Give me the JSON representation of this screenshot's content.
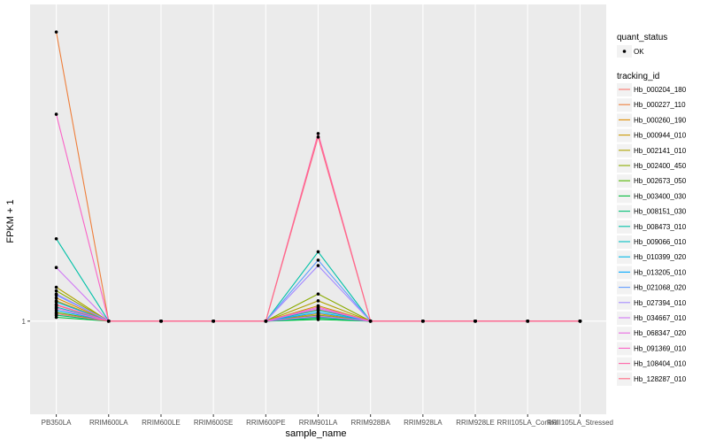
{
  "chart_data": {
    "type": "line",
    "xlabel": "sample_name",
    "ylabel": "FPKM + 1",
    "categories": [
      "PB350LA",
      "RRIM600LA",
      "RRIM600LE",
      "RRIM600SE",
      "RRIM600PE",
      "RRIM901LA",
      "RRIM928BA",
      "RRIM928LA",
      "RRIM928LE",
      "RRII105LA_Control",
      "RRII105LA_Stressed"
    ],
    "y_tick_labels": [
      "1"
    ],
    "y_ticks": [
      1
    ],
    "ylim": [
      0.3,
      60
    ],
    "grid": true,
    "legend": {
      "position": "right",
      "shape_title": "quant_status",
      "shape_items": [
        "OK"
      ],
      "color_title": "tracking_id"
    },
    "series": [
      {
        "name": "Hb_000204_180",
        "color": "#F8766D",
        "values": [
          1.23,
          1,
          1,
          1,
          1,
          1.05,
          1,
          1,
          1,
          1,
          1
        ]
      },
      {
        "name": "Hb_000227_110",
        "color": "#EE7E3A",
        "values": [
          42.0,
          1,
          1,
          1,
          1,
          1.16,
          1,
          1,
          1,
          1,
          1
        ]
      },
      {
        "name": "Hb_000260_190",
        "color": "#DE8C00",
        "values": [
          1.35,
          1,
          1,
          1,
          1,
          1.1,
          1,
          1,
          1,
          1,
          1
        ]
      },
      {
        "name": "Hb_000944_010",
        "color": "#C99800",
        "values": [
          1.3,
          1,
          1,
          1,
          1,
          1.22,
          1,
          1,
          1,
          1,
          1
        ]
      },
      {
        "name": "Hb_002141_010",
        "color": "#AEA200",
        "values": [
          1.55,
          1,
          1,
          1,
          1,
          1.3,
          1,
          1,
          1,
          1,
          1
        ]
      },
      {
        "name": "Hb_002400_450",
        "color": "#8AAB00",
        "values": [
          1.48,
          1,
          1,
          1,
          1,
          1.42,
          1,
          1,
          1,
          1,
          1
        ]
      },
      {
        "name": "Hb_002673_050",
        "color": "#53B400",
        "values": [
          1.12,
          1,
          1,
          1,
          1,
          1.08,
          1,
          1,
          1,
          1,
          1
        ]
      },
      {
        "name": "Hb_003400_030",
        "color": "#00BA38",
        "values": [
          1.05,
          1,
          1,
          1,
          1,
          1.02,
          1,
          1,
          1,
          1,
          1
        ]
      },
      {
        "name": "Hb_008151_030",
        "color": "#00BF74",
        "values": [
          1.08,
          1,
          1,
          1,
          1,
          1.04,
          1,
          1,
          1,
          1,
          1
        ]
      },
      {
        "name": "Hb_008473_010",
        "color": "#00C1A7",
        "values": [
          2.9,
          1,
          1,
          1,
          1,
          2.45,
          1,
          1,
          1,
          1,
          1
        ]
      },
      {
        "name": "Hb_009066_010",
        "color": "#00BFC4",
        "values": [
          1.2,
          1,
          1,
          1,
          1,
          1.15,
          1,
          1,
          1,
          1,
          1
        ]
      },
      {
        "name": "Hb_010399_020",
        "color": "#00B8E7",
        "values": [
          1.28,
          1,
          1,
          1,
          1,
          1.06,
          1,
          1,
          1,
          1,
          1
        ]
      },
      {
        "name": "Hb_013205_010",
        "color": "#00A9FF",
        "values": [
          1.15,
          1,
          1,
          1,
          1,
          1.12,
          1,
          1,
          1,
          1,
          1
        ]
      },
      {
        "name": "Hb_021068_020",
        "color": "#619CFF",
        "values": [
          1.4,
          1,
          1,
          1,
          1,
          2.2,
          1,
          1,
          1,
          1,
          1
        ]
      },
      {
        "name": "Hb_027394_010",
        "color": "#A58AFF",
        "values": [
          1.42,
          1,
          1,
          1,
          1,
          2.05,
          1,
          1,
          1,
          1,
          1
        ]
      },
      {
        "name": "Hb_034667_010",
        "color": "#D078F5",
        "values": [
          2.0,
          1,
          1,
          1,
          1,
          1.18,
          1,
          1,
          1,
          1,
          1
        ]
      },
      {
        "name": "Hb_068347_020",
        "color": "#EA6AE2",
        "values": [
          1.18,
          1,
          1,
          1,
          1,
          1.07,
          1,
          1,
          1,
          1,
          1
        ]
      },
      {
        "name": "Hb_091369_010",
        "color": "#FA62C6",
        "values": [
          14.5,
          1,
          1,
          1,
          1,
          1.2,
          1,
          1,
          1,
          1,
          1
        ]
      },
      {
        "name": "Hb_108404_010",
        "color": "#FF63A7",
        "values": [
          1.24,
          1,
          1,
          1,
          1,
          11.3,
          1,
          1,
          1,
          1,
          1
        ]
      },
      {
        "name": "Hb_128287_010",
        "color": "#FF6B84",
        "values": [
          1.1,
          1,
          1,
          1,
          1,
          10.8,
          1,
          1,
          1,
          1,
          1
        ]
      }
    ]
  }
}
